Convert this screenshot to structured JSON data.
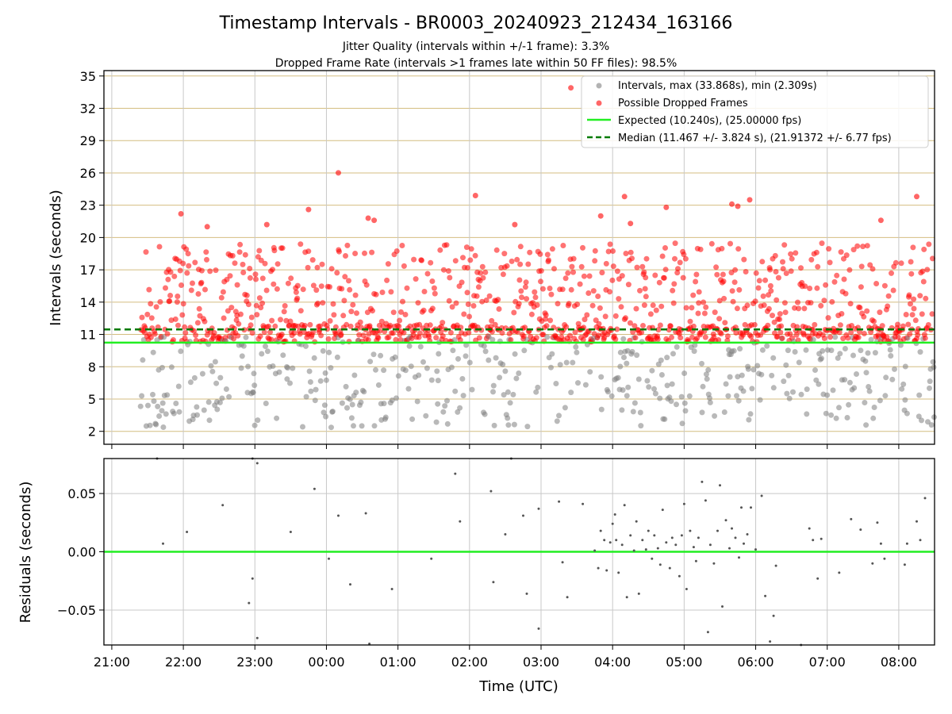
{
  "header": {
    "title": "Timestamp Intervals - BR0003_20240923_212434_163166",
    "subtitle1": "Jitter Quality (intervals within +/-1 frame): 3.3%",
    "subtitle2": "Dropped Frame Rate (intervals >1 frames late within 50 FF files): 98.5%"
  },
  "colors": {
    "interval": "#808080",
    "dropped": "#ff0000",
    "expected": "#22ee22",
    "median": "#007a00",
    "hgrid": "#d4bd80",
    "vgrid": "#c8c8c8"
  },
  "chart_data": [
    {
      "type": "scatter",
      "ylabel": "Intervals (seconds)",
      "xlim": [
        "21:00",
        "08:30"
      ],
      "ylim": [
        0.8,
        35.5
      ],
      "yticks": [
        2,
        5,
        8,
        11,
        14,
        17,
        20,
        23,
        26,
        29,
        32,
        35
      ],
      "grid": true,
      "legend_position": "top-right",
      "legend": [
        "Intervals, max (33.868s), min (2.309s)",
        "Possible Dropped Frames",
        "Expected (10.240s), (25.00000 fps)",
        "Median (11.467 +/- 3.824 s), (21.91372 +/- 6.77 fps)"
      ],
      "expected_interval": 10.24,
      "median_interval": 11.467,
      "data_start": "21:24",
      "data_end": "08:30",
      "bands": {
        "intervals": [
          2.3,
          10.8
        ],
        "dropped": [
          10.3,
          19.5
        ]
      },
      "dropped_outliers": [
        {
          "x": "21:58",
          "y": 22.2
        },
        {
          "x": "22:20",
          "y": 21.0
        },
        {
          "x": "23:10",
          "y": 21.2
        },
        {
          "x": "23:45",
          "y": 22.6
        },
        {
          "x": "00:10",
          "y": 26.0
        },
        {
          "x": "00:35",
          "y": 21.8
        },
        {
          "x": "00:40",
          "y": 21.6
        },
        {
          "x": "02:05",
          "y": 23.9
        },
        {
          "x": "02:38",
          "y": 21.2
        },
        {
          "x": "03:25",
          "y": 33.9
        },
        {
          "x": "03:50",
          "y": 22.0
        },
        {
          "x": "04:10",
          "y": 23.8
        },
        {
          "x": "04:15",
          "y": 21.3
        },
        {
          "x": "04:45",
          "y": 22.8
        },
        {
          "x": "05:40",
          "y": 23.1
        },
        {
          "x": "05:45",
          "y": 22.9
        },
        {
          "x": "05:55",
          "y": 23.5
        },
        {
          "x": "07:45",
          "y": 21.6
        },
        {
          "x": "08:15",
          "y": 23.8
        }
      ]
    },
    {
      "type": "scatter",
      "xlabel": "Time (UTC)",
      "ylabel": "Residuals (seconds)",
      "xlim": [
        "21:00",
        "08:30"
      ],
      "ylim": [
        -0.08,
        0.08
      ],
      "yticks": [
        "−0.05",
        "0.00",
        "0.05"
      ],
      "xticks": [
        "21:00",
        "22:00",
        "23:00",
        "00:00",
        "01:00",
        "02:00",
        "03:00",
        "04:00",
        "05:00",
        "06:00",
        "07:00",
        "08:00"
      ],
      "grid": true,
      "zero_line": 0.0,
      "points": [
        {
          "x": "21:38",
          "y": 0.08
        },
        {
          "x": "21:43",
          "y": 0.007
        },
        {
          "x": "22:03",
          "y": 0.017
        },
        {
          "x": "22:33",
          "y": 0.04
        },
        {
          "x": "22:55",
          "y": -0.044
        },
        {
          "x": "22:58",
          "y": -0.023
        },
        {
          "x": "22:58",
          "y": 0.08
        },
        {
          "x": "23:02",
          "y": 0.076
        },
        {
          "x": "23:02",
          "y": -0.074
        },
        {
          "x": "23:30",
          "y": 0.017
        },
        {
          "x": "23:50",
          "y": 0.054
        },
        {
          "x": "00:02",
          "y": -0.006
        },
        {
          "x": "00:10",
          "y": 0.031
        },
        {
          "x": "00:20",
          "y": -0.028
        },
        {
          "x": "00:33",
          "y": 0.033
        },
        {
          "x": "00:36",
          "y": -0.079
        },
        {
          "x": "00:55",
          "y": -0.032
        },
        {
          "x": "01:28",
          "y": -0.006
        },
        {
          "x": "01:48",
          "y": 0.067
        },
        {
          "x": "01:52",
          "y": 0.026
        },
        {
          "x": "02:18",
          "y": 0.052
        },
        {
          "x": "02:20",
          "y": -0.026
        },
        {
          "x": "02:30",
          "y": 0.015
        },
        {
          "x": "02:35",
          "y": 0.08
        },
        {
          "x": "02:45",
          "y": 0.031
        },
        {
          "x": "02:48",
          "y": -0.036
        },
        {
          "x": "02:58",
          "y": 0.037
        },
        {
          "x": "02:58",
          "y": -0.066
        },
        {
          "x": "03:15",
          "y": 0.043
        },
        {
          "x": "03:18",
          "y": -0.009
        },
        {
          "x": "03:22",
          "y": -0.039
        },
        {
          "x": "03:35",
          "y": 0.041
        },
        {
          "x": "03:45",
          "y": 0.001
        },
        {
          "x": "03:48",
          "y": -0.014
        },
        {
          "x": "03:50",
          "y": 0.018
        },
        {
          "x": "03:53",
          "y": 0.01
        },
        {
          "x": "03:55",
          "y": -0.016
        },
        {
          "x": "03:58",
          "y": 0.008
        },
        {
          "x": "04:00",
          "y": 0.024
        },
        {
          "x": "04:02",
          "y": 0.032
        },
        {
          "x": "04:03",
          "y": 0.01
        },
        {
          "x": "04:05",
          "y": -0.018
        },
        {
          "x": "04:08",
          "y": 0.006
        },
        {
          "x": "04:10",
          "y": 0.04
        },
        {
          "x": "04:12",
          "y": -0.039
        },
        {
          "x": "04:15",
          "y": 0.014
        },
        {
          "x": "04:18",
          "y": 0.001
        },
        {
          "x": "04:20",
          "y": 0.026
        },
        {
          "x": "04:22",
          "y": -0.036
        },
        {
          "x": "04:25",
          "y": 0.01
        },
        {
          "x": "04:28",
          "y": 0.002
        },
        {
          "x": "04:30",
          "y": 0.018
        },
        {
          "x": "04:33",
          "y": -0.006
        },
        {
          "x": "04:35",
          "y": 0.014
        },
        {
          "x": "04:38",
          "y": 0.003
        },
        {
          "x": "04:40",
          "y": -0.011
        },
        {
          "x": "04:42",
          "y": 0.036
        },
        {
          "x": "04:45",
          "y": 0.008
        },
        {
          "x": "04:48",
          "y": -0.014
        },
        {
          "x": "04:50",
          "y": 0.012
        },
        {
          "x": "04:53",
          "y": 0.006
        },
        {
          "x": "04:56",
          "y": -0.021
        },
        {
          "x": "04:58",
          "y": 0.014
        },
        {
          "x": "05:00",
          "y": 0.041
        },
        {
          "x": "05:02",
          "y": -0.032
        },
        {
          "x": "05:05",
          "y": 0.018
        },
        {
          "x": "05:08",
          "y": 0.004
        },
        {
          "x": "05:10",
          "y": -0.008
        },
        {
          "x": "05:12",
          "y": 0.012
        },
        {
          "x": "05:15",
          "y": 0.06
        },
        {
          "x": "05:18",
          "y": 0.044
        },
        {
          "x": "05:20",
          "y": -0.069
        },
        {
          "x": "05:22",
          "y": 0.006
        },
        {
          "x": "05:25",
          "y": -0.01
        },
        {
          "x": "05:28",
          "y": 0.018
        },
        {
          "x": "05:30",
          "y": 0.057
        },
        {
          "x": "05:32",
          "y": -0.047
        },
        {
          "x": "05:35",
          "y": 0.027
        },
        {
          "x": "05:38",
          "y": 0.003
        },
        {
          "x": "05:40",
          "y": 0.02
        },
        {
          "x": "05:43",
          "y": 0.012
        },
        {
          "x": "05:46",
          "y": -0.005
        },
        {
          "x": "05:48",
          "y": 0.038
        },
        {
          "x": "05:50",
          "y": 0.007
        },
        {
          "x": "05:53",
          "y": 0.015
        },
        {
          "x": "05:56",
          "y": 0.038
        },
        {
          "x": "06:00",
          "y": 0.002
        },
        {
          "x": "06:05",
          "y": 0.048
        },
        {
          "x": "06:08",
          "y": -0.038
        },
        {
          "x": "06:12",
          "y": -0.077
        },
        {
          "x": "06:15",
          "y": -0.055
        },
        {
          "x": "06:17",
          "y": -0.012
        },
        {
          "x": "06:38",
          "y": -0.08
        },
        {
          "x": "06:45",
          "y": 0.02
        },
        {
          "x": "06:48",
          "y": 0.01
        },
        {
          "x": "06:52",
          "y": -0.023
        },
        {
          "x": "06:55",
          "y": 0.011
        },
        {
          "x": "07:10",
          "y": -0.018
        },
        {
          "x": "07:20",
          "y": 0.028
        },
        {
          "x": "07:28",
          "y": 0.019
        },
        {
          "x": "07:38",
          "y": -0.01
        },
        {
          "x": "07:42",
          "y": 0.025
        },
        {
          "x": "07:45",
          "y": 0.007
        },
        {
          "x": "07:48",
          "y": -0.006
        },
        {
          "x": "08:05",
          "y": -0.011
        },
        {
          "x": "08:07",
          "y": 0.007
        },
        {
          "x": "08:15",
          "y": 0.026
        },
        {
          "x": "08:18",
          "y": 0.01
        },
        {
          "x": "08:22",
          "y": 0.046
        }
      ]
    }
  ]
}
